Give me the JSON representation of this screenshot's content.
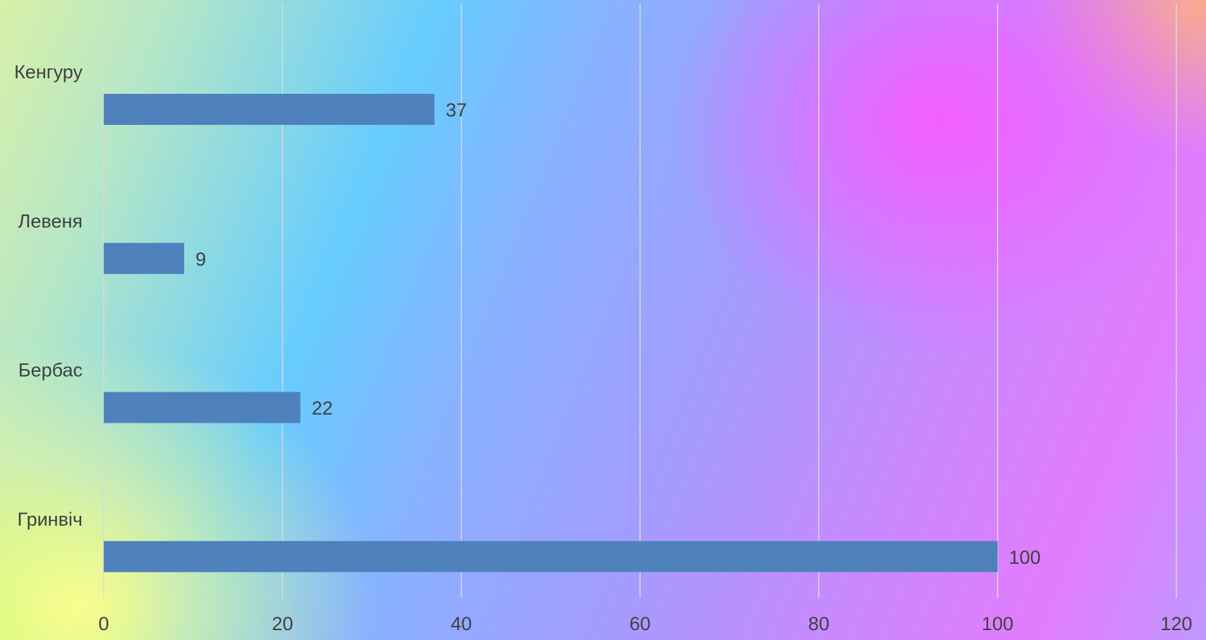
{
  "chart_data": {
    "type": "bar",
    "orientation": "horizontal",
    "categories": [
      "Кенгуру",
      "Левеня",
      "Бербас",
      "Гринвіч"
    ],
    "series": [
      {
        "values": [
          37,
          9,
          22,
          100
        ],
        "color": "#4f81bd"
      }
    ],
    "data_labels": [
      "37",
      "9",
      "22",
      "100"
    ],
    "xlim": [
      0,
      120
    ],
    "x_ticks": [
      0,
      20,
      40,
      60,
      80,
      100,
      120
    ],
    "x_tick_labels": [
      "0",
      "20",
      "40",
      "60",
      "80",
      "100",
      "120"
    ],
    "grid": true,
    "legend": "none",
    "title": "",
    "xlabel": "",
    "ylabel": ""
  }
}
